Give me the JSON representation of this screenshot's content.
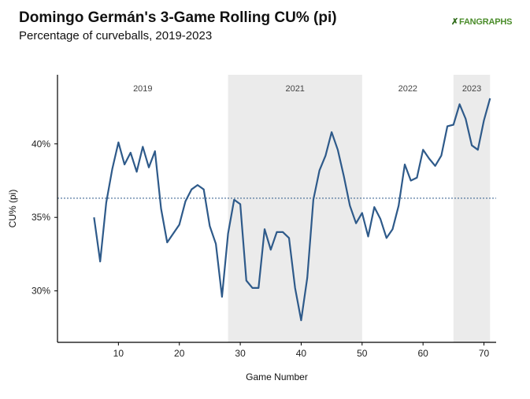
{
  "header": {
    "title": "Domingo Germán's 3-Game Rolling CU% (pi)",
    "subtitle": "Percentage of curveballs, 2019-2023",
    "logo": "FANGRAPHS"
  },
  "colors": {
    "line": "#2e5a8a",
    "shade": "#ebebeb",
    "reference": "#2e5a8a"
  },
  "chart_data": {
    "type": "line",
    "title": "Domingo Germán's 3-Game Rolling CU% (pi)",
    "subtitle": "Percentage of curveballs, 2019-2023",
    "xlabel": "Game Number",
    "ylabel": "CU% (pi)",
    "xlim": [
      0,
      72
    ],
    "ylim": [
      26.5,
      44.7
    ],
    "xticks": [
      10,
      20,
      30,
      40,
      50,
      60,
      70
    ],
    "xtick_labels": [
      "10",
      "20",
      "30",
      "40",
      "50",
      "60",
      "70"
    ],
    "yticks": [
      30,
      35,
      40
    ],
    "ytick_labels": [
      "30%",
      "35%",
      "40%"
    ],
    "grid": false,
    "reference_line": {
      "y": 36.3,
      "style": "dotted"
    },
    "seasons": [
      {
        "label": "2019",
        "start": 0,
        "end": 28,
        "shaded": false
      },
      {
        "label": "2021",
        "start": 28,
        "end": 50,
        "shaded": true
      },
      {
        "label": "2022",
        "start": 50,
        "end": 65,
        "shaded": false
      },
      {
        "label": "2023",
        "start": 65,
        "end": 71,
        "shaded": true
      }
    ],
    "series": [
      {
        "x": [
          6,
          7,
          8,
          9,
          10,
          11,
          12,
          13,
          14,
          15,
          16,
          17,
          18,
          19,
          20,
          21,
          22,
          23,
          24,
          25,
          26,
          27,
          28,
          29,
          30,
          31,
          32,
          33,
          34,
          35,
          36,
          37,
          38,
          39,
          40,
          41,
          42,
          43,
          44,
          45,
          46,
          47,
          48,
          49,
          50,
          51,
          52,
          53,
          54,
          55,
          56,
          57,
          58,
          59,
          60,
          61,
          62,
          63,
          64,
          65,
          66,
          67,
          68,
          69,
          70,
          71
        ],
        "values": [
          35.0,
          32.0,
          36.0,
          38.3,
          40.1,
          38.6,
          39.4,
          38.1,
          39.8,
          38.4,
          39.5,
          35.6,
          33.3,
          33.9,
          34.5,
          36.1,
          36.9,
          37.2,
          36.9,
          34.4,
          33.2,
          29.6,
          33.9,
          36.2,
          35.9,
          30.7,
          30.2,
          30.2,
          34.2,
          32.8,
          34.0,
          34.0,
          33.6,
          30.2,
          28.0,
          30.9,
          36.2,
          38.2,
          39.2,
          40.8,
          39.6,
          37.8,
          35.8,
          34.6,
          35.3,
          33.7,
          35.7,
          34.9,
          33.6,
          34.2,
          35.8,
          38.6,
          37.5,
          37.7,
          39.6,
          39.0,
          38.5,
          39.2,
          41.2,
          41.3,
          42.7,
          41.7,
          39.9,
          39.6,
          41.6,
          43.1
        ]
      }
    ]
  }
}
